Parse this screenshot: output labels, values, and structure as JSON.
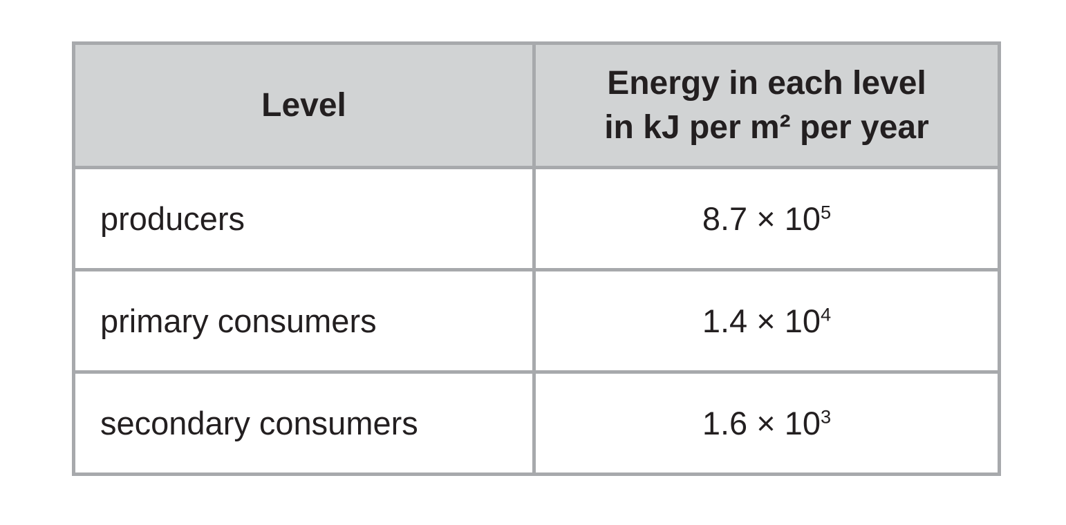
{
  "table": {
    "columns": {
      "level_label": "Level",
      "energy_label_line1": "Energy in each level",
      "energy_label_line2": "in kJ per m² per year"
    },
    "rows": [
      {
        "level": "producers",
        "value_base": "8.7 × 10",
        "value_exponent": "5"
      },
      {
        "level": "primary consumers",
        "value_base": "1.4 × 10",
        "value_exponent": "4"
      },
      {
        "level": "secondary consumers",
        "value_base": "1.6 × 10",
        "value_exponent": "3"
      }
    ],
    "colors": {
      "header_background": "#d1d3d4",
      "border": "#a7a9ac",
      "text": "#231f20",
      "row_background": "#ffffff"
    }
  },
  "chart_data": {
    "type": "table",
    "title": "",
    "columns": [
      "Level",
      "Energy in each level in kJ per m² per year"
    ],
    "categories": [
      "producers",
      "primary consumers",
      "secondary consumers"
    ],
    "values": [
      870000,
      14000,
      1600
    ],
    "values_scientific": [
      "8.7 × 10^5",
      "1.4 × 10^4",
      "1.6 × 10^3"
    ],
    "units": "kJ per m² per year"
  }
}
